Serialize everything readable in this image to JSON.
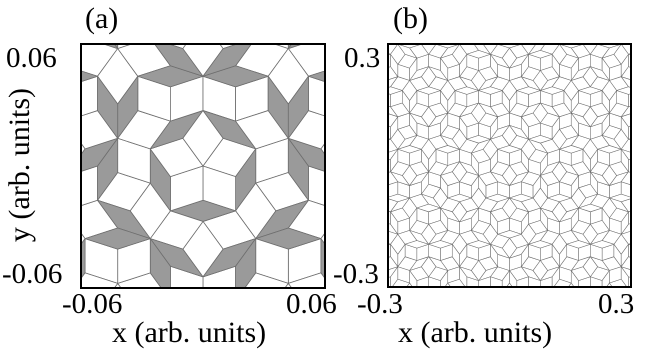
{
  "panels": [
    {
      "label": "(a)",
      "x_ticks": [
        "-0.06",
        "0.06"
      ],
      "y_ticks": [
        "0.06",
        "-0.06"
      ],
      "xlabel": "x (arb. units)",
      "ylabel": "y (arb. units)",
      "xlim": [
        -0.06,
        0.06
      ],
      "ylim": [
        -0.06,
        0.06
      ]
    },
    {
      "label": "(b)",
      "x_ticks": [
        "-0.3",
        "0.3"
      ],
      "y_ticks": [
        "0.3",
        "-0.3"
      ],
      "xlabel": "x (arb. units)",
      "ylabel": "",
      "xlim": [
        -0.3,
        0.3
      ],
      "ylim": [
        -0.3,
        0.3
      ]
    }
  ],
  "colors": {
    "tile_fill_thin": "#9a9a9a",
    "tile_fill_thick": "#ffffff",
    "tile_stroke": "#6e6e6e"
  }
}
